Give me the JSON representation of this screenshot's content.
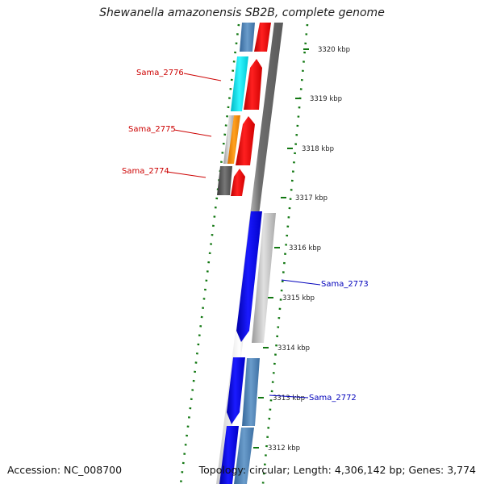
{
  "title": "Shewanella amazonensis SB2B, complete genome",
  "footer": {
    "accession": "Accession: NC_008700",
    "summary": "Topology: circular; Length: 4,306,142 bp; Genes: 3,774"
  },
  "ticks": [
    {
      "label": "3320 kbp"
    },
    {
      "label": "3319 kbp"
    },
    {
      "label": "3318 kbp"
    },
    {
      "label": "3317 kbp"
    },
    {
      "label": "3316 kbp"
    },
    {
      "label": "3315 kbp"
    },
    {
      "label": "3314 kbp"
    },
    {
      "label": "3313 kbp"
    },
    {
      "label": "3312 kbp"
    }
  ],
  "gene_labels": [
    {
      "name": "Sama_2776",
      "color": "#cc0000"
    },
    {
      "name": "Sama_2775",
      "color": "#cc0000"
    },
    {
      "name": "Sama_2774",
      "color": "#cc0000"
    },
    {
      "name": "Sama_2773",
      "color": "#0000bb"
    },
    {
      "name": "Sama_2772",
      "color": "#0000bb"
    }
  ],
  "colors": {
    "forward_strand": "#ff0000",
    "reverse_strand": "#0000ee",
    "tick_marks": "#117711",
    "backbone": "#7a7a7a",
    "steel_blue": "#4f86b8",
    "cyan": "#00e5ee",
    "orange": "#ff8c00",
    "gray": "#bdbdbd",
    "dark_gray": "#5a5a5a"
  }
}
